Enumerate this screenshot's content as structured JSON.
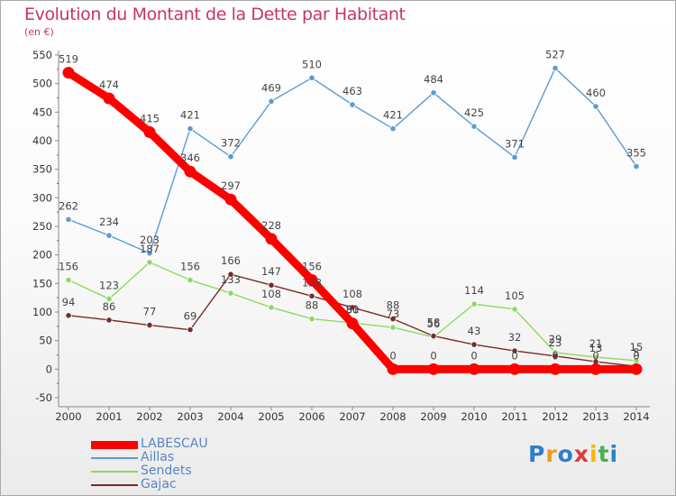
{
  "title": "Evolution du Montant de la Dette par Habitant",
  "subtitle": "(en €)",
  "logo": {
    "text": "Proxiti",
    "colors": [
      "#2f7fc4",
      "#f09a1d",
      "#2f7fc4",
      "#e03a3a",
      "#f5b800",
      "#4caf50",
      "#2f7fc4"
    ]
  },
  "chart_data": {
    "type": "line",
    "title": "Evolution du Montant de la Dette par Habitant",
    "subtitle": "(en €)",
    "x": [
      "2000",
      "2001",
      "2002",
      "2003",
      "2004",
      "2005",
      "2006",
      "2007",
      "2008",
      "2009",
      "2010",
      "2011",
      "2012",
      "2013",
      "2014"
    ],
    "ylim": [
      -50,
      550
    ],
    "yticks": [
      -50,
      0,
      50,
      100,
      150,
      200,
      250,
      300,
      350,
      400,
      450,
      500,
      550
    ],
    "grid": false,
    "legend_position": "bottom-left",
    "series": [
      {
        "name": "LABESCAU",
        "color": "#ff0000",
        "values": [
          519,
          474,
          415,
          346,
          297,
          228,
          156,
          80,
          0,
          0,
          0,
          0,
          0,
          0,
          0
        ]
      },
      {
        "name": "Aillas",
        "color": "#5b9bd5",
        "values": [
          262,
          234,
          203,
          421,
          372,
          469,
          510,
          463,
          421,
          484,
          425,
          371,
          527,
          460,
          355
        ]
      },
      {
        "name": "Sendets",
        "color": "#8dd865",
        "values": [
          156,
          123,
          187,
          156,
          133,
          108,
          88,
          81,
          73,
          56,
          114,
          105,
          29,
          21,
          15
        ]
      },
      {
        "name": "Gajac",
        "color": "#7a2a2a",
        "values": [
          94,
          86,
          77,
          69,
          166,
          147,
          128,
          108,
          88,
          58,
          43,
          32,
          23,
          13,
          5
        ]
      }
    ]
  }
}
